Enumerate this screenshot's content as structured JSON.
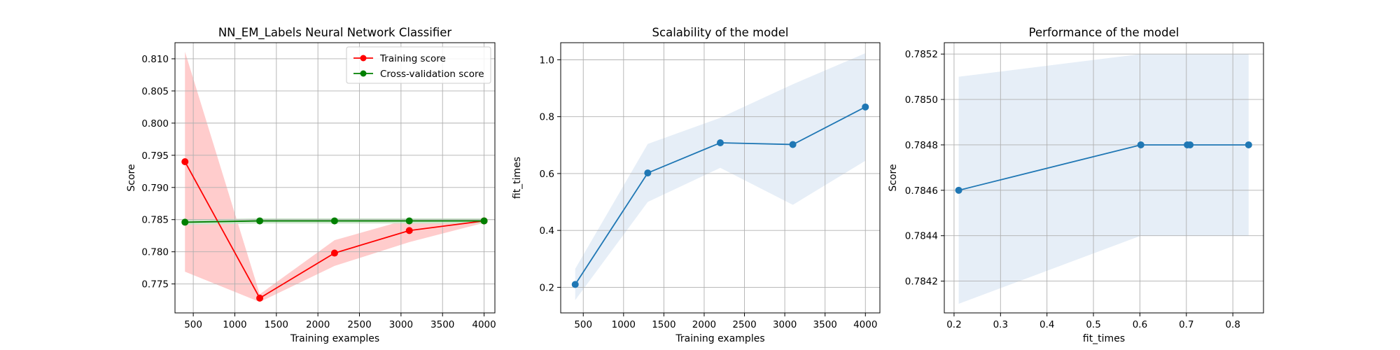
{
  "figure": {
    "background": "#ffffff"
  },
  "chart_data": [
    {
      "type": "line",
      "title": "NN_EM_Labels Neural Network Classifier",
      "xlabel": "Training examples",
      "ylabel": "Score",
      "xlim": [
        280,
        4130
      ],
      "ylim": [
        0.7705,
        0.8125
      ],
      "xticks": [
        500,
        1000,
        1500,
        2000,
        2500,
        3000,
        3500,
        4000
      ],
      "xtick_labels": [
        "500",
        "1000",
        "1500",
        "2000",
        "2500",
        "3000",
        "3500",
        "4000"
      ],
      "yticks": [
        0.775,
        0.78,
        0.785,
        0.79,
        0.795,
        0.8,
        0.805,
        0.81
      ],
      "ytick_labels": [
        "0.775",
        "0.780",
        "0.785",
        "0.790",
        "0.795",
        "0.800",
        "0.805",
        "0.810"
      ],
      "grid": true,
      "legend_position": "top-right",
      "x": [
        400,
        1300,
        2200,
        3100,
        4000
      ],
      "series": [
        {
          "name": "Training score",
          "color": "#ff0000",
          "band_color": "#ffcccc",
          "values": [
            0.794,
            0.7728,
            0.7798,
            0.7833,
            0.7848
          ],
          "band_lower": [
            0.7769,
            0.7722,
            0.7778,
            0.7815,
            0.7845
          ],
          "band_upper": [
            0.8111,
            0.7734,
            0.7818,
            0.7851,
            0.7851
          ]
        },
        {
          "name": "Cross-validation score",
          "color": "#008000",
          "band_color": "#cce6cc",
          "values": [
            0.7846,
            0.7848,
            0.7848,
            0.7848,
            0.7848
          ],
          "band_lower": [
            0.7842,
            0.7844,
            0.7844,
            0.7844,
            0.7844
          ],
          "band_upper": [
            0.785,
            0.7852,
            0.7852,
            0.7852,
            0.7852
          ]
        }
      ]
    },
    {
      "type": "line",
      "title": "Scalability of the model",
      "xlabel": "Training examples",
      "ylabel": "fit_times",
      "xlim": [
        220,
        4180
      ],
      "ylim": [
        0.11,
        1.06
      ],
      "xticks": [
        500,
        1000,
        1500,
        2000,
        2500,
        3000,
        3500,
        4000
      ],
      "xtick_labels": [
        "500",
        "1000",
        "1500",
        "2000",
        "2500",
        "3000",
        "3500",
        "4000"
      ],
      "yticks": [
        0.2,
        0.4,
        0.6,
        0.8,
        1.0
      ],
      "ytick_labels": [
        "0.2",
        "0.4",
        "0.6",
        "0.8",
        "1.0"
      ],
      "grid": true,
      "x": [
        400,
        1300,
        2200,
        3100,
        4000
      ],
      "series": [
        {
          "color": "#1f77b4",
          "band_color": "#e6eef7",
          "values": [
            0.21,
            0.602,
            0.708,
            0.702,
            0.834
          ],
          "band_lower": [
            0.155,
            0.5,
            0.62,
            0.49,
            0.645
          ],
          "band_upper": [
            0.265,
            0.704,
            0.796,
            0.914,
            1.023
          ]
        }
      ]
    },
    {
      "type": "line",
      "title": "Performance of the model",
      "xlabel": "fit_times",
      "ylabel": "Score",
      "xlim": [
        0.179,
        0.866
      ],
      "ylim": [
        0.78406,
        0.78525
      ],
      "xticks": [
        0.2,
        0.3,
        0.4,
        0.5,
        0.6,
        0.7,
        0.8
      ],
      "xtick_labels": [
        "0.2",
        "0.3",
        "0.4",
        "0.5",
        "0.6",
        "0.7",
        "0.8"
      ],
      "yticks": [
        0.7842,
        0.7844,
        0.7846,
        0.7848,
        0.785,
        0.7852
      ],
      "ytick_labels": [
        "0.7842",
        "0.7844",
        "0.7846",
        "0.7848",
        "0.7850",
        "0.7852"
      ],
      "grid": true,
      "series": [
        {
          "color": "#1f77b4",
          "band_color": "#e6eef7",
          "x": [
            0.21,
            0.602,
            0.702,
            0.708,
            0.834
          ],
          "values": [
            0.7846,
            0.7848,
            0.7848,
            0.7848,
            0.7848
          ],
          "band_lower": [
            0.7841,
            0.7844,
            0.7844,
            0.7844,
            0.7844
          ],
          "band_upper": [
            0.7851,
            0.7852,
            0.7852,
            0.7852,
            0.7852
          ]
        }
      ]
    }
  ]
}
